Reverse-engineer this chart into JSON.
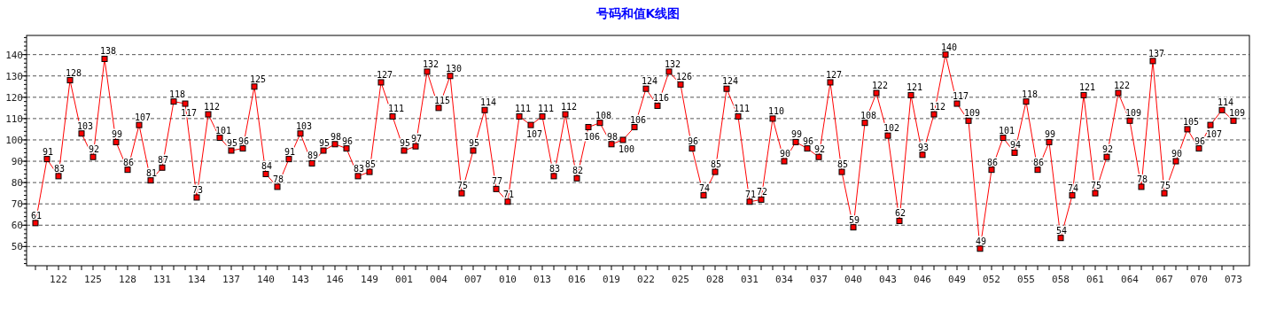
{
  "chart_data": {
    "type": "line",
    "title": "号码和值K线图",
    "categories": [
      null,
      null,
      "122",
      null,
      null,
      "125",
      null,
      null,
      "128",
      null,
      null,
      "131",
      null,
      null,
      "134",
      null,
      null,
      "137",
      null,
      null,
      "140",
      null,
      null,
      "143",
      null,
      null,
      "146",
      null,
      null,
      "149",
      null,
      null,
      "001",
      null,
      null,
      "004",
      null,
      null,
      "007",
      null,
      null,
      "010",
      null,
      null,
      "013",
      null,
      null,
      "016",
      null,
      null,
      "019",
      null,
      null,
      "022",
      null,
      null,
      "025",
      null,
      null,
      "028",
      null,
      null,
      "031",
      null,
      null,
      "034",
      null,
      null,
      "037",
      null,
      null,
      "040",
      null,
      null,
      "043",
      null,
      null,
      "046",
      null,
      null,
      "049",
      null,
      null,
      "052",
      null,
      null,
      "055",
      null,
      null,
      "058",
      null,
      null,
      "061",
      null,
      null,
      "064",
      null,
      null,
      "067",
      null,
      null,
      "070",
      null,
      null,
      "073"
    ],
    "series": [
      {
        "color": "#ff0000",
        "values": [
          61,
          91,
          83,
          128,
          103,
          92,
          138,
          99,
          86,
          107,
          81,
          87,
          118,
          117,
          73,
          112,
          101,
          95,
          96,
          125,
          84,
          78,
          91,
          103,
          89,
          95,
          98,
          96,
          83,
          85,
          127,
          111,
          95,
          97,
          132,
          115,
          130,
          75,
          95,
          114,
          77,
          71,
          111,
          107,
          111,
          83,
          112,
          82,
          106,
          108,
          98,
          100,
          106,
          124,
          116,
          132,
          126,
          96,
          74,
          85,
          124,
          111,
          71,
          72,
          110,
          90,
          99,
          96,
          92,
          127,
          85,
          59,
          108,
          122,
          102,
          62,
          121,
          93,
          112,
          140,
          117,
          109,
          49,
          86,
          101,
          94,
          118,
          86,
          99,
          54,
          74,
          121,
          75,
          92,
          122,
          109,
          78,
          137,
          75,
          90,
          105,
          96,
          107,
          114,
          109
        ]
      }
    ],
    "ylim": [
      41,
      149
    ],
    "yticks": [
      50,
      60,
      70,
      80,
      90,
      100,
      110,
      120,
      130,
      140
    ],
    "grid": "y",
    "marker": "square",
    "line_style": "solid",
    "data_labels": true
  }
}
